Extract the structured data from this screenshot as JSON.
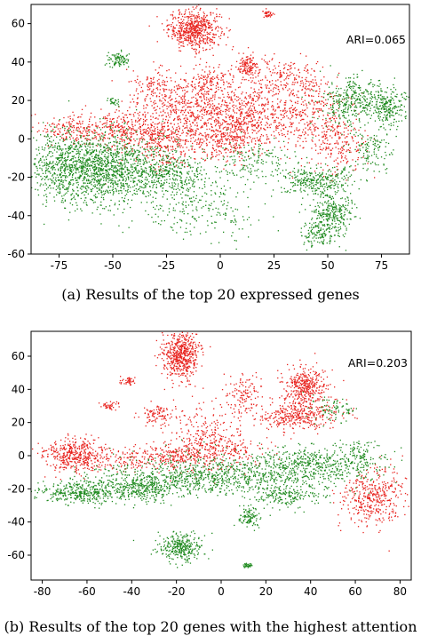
{
  "chart_data": [
    {
      "type": "scatter",
      "caption_label": "(a)",
      "caption_text": "Results of the top 20 expressed genes",
      "annotation": "ARI=0.065",
      "xlim": [
        -88,
        88
      ],
      "ylim": [
        -60,
        70
      ],
      "xticks": [
        -75,
        -50,
        -25,
        0,
        25,
        50,
        75
      ],
      "yticks": [
        -60,
        -40,
        -20,
        0,
        20,
        40,
        60
      ],
      "grid": false,
      "series": [
        {
          "color": "#e8231e",
          "clusters": [
            {
              "x": -12,
              "y": 57,
              "sx": 6,
              "sy": 5,
              "n": 600
            },
            {
              "x": 22,
              "y": 65,
              "sx": 1.2,
              "sy": 1,
              "n": 40
            },
            {
              "x": 13,
              "y": 38,
              "sx": 2.5,
              "sy": 3,
              "n": 120
            },
            {
              "x": -12,
              "y": 15,
              "sx": 10,
              "sy": 8,
              "n": 450
            },
            {
              "x": 15,
              "y": 12,
              "sx": 9,
              "sy": 8,
              "n": 450
            },
            {
              "x": -45,
              "y": 5,
              "sx": 10,
              "sy": 5,
              "n": 350
            },
            {
              "x": -25,
              "y": -2,
              "sx": 9,
              "sy": 7,
              "n": 300
            },
            {
              "x": 2,
              "y": 0,
              "sx": 8,
              "sy": 6,
              "n": 280
            },
            {
              "x": 40,
              "y": 15,
              "sx": 9,
              "sy": 10,
              "n": 350
            },
            {
              "x": 55,
              "y": -2,
              "sx": 6,
              "sy": 8,
              "n": 200
            },
            {
              "x": -70,
              "y": 5,
              "sx": 8,
              "sy": 4,
              "n": 150
            },
            {
              "x": -30,
              "y": 25,
              "sx": 6,
              "sy": 5,
              "n": 150
            },
            {
              "x": 28,
              "y": 33,
              "sx": 8,
              "sy": 5,
              "n": 150
            },
            {
              "x": -5,
              "y": 30,
              "sx": 6,
              "sy": 4,
              "n": 130
            }
          ]
        },
        {
          "color": "#1f8a1f",
          "clusters": [
            {
              "x": -55,
              "y": -15,
              "sx": 14,
              "sy": 9,
              "n": 1300
            },
            {
              "x": -75,
              "y": -15,
              "sx": 7,
              "sy": 9,
              "n": 350
            },
            {
              "x": -22,
              "y": -18,
              "sx": 10,
              "sy": 6,
              "n": 350
            },
            {
              "x": -10,
              "y": -38,
              "sx": 15,
              "sy": 7,
              "n": 200
            },
            {
              "x": 63,
              "y": 20,
              "sx": 8,
              "sy": 6,
              "n": 380
            },
            {
              "x": 78,
              "y": 16,
              "sx": 4,
              "sy": 5,
              "n": 180
            },
            {
              "x": 45,
              "y": -22,
              "sx": 8,
              "sy": 4,
              "n": 300
            },
            {
              "x": 52,
              "y": -40,
              "sx": 5,
              "sy": 6,
              "n": 300
            },
            {
              "x": 45,
              "y": -50,
              "sx": 4,
              "sy": 3,
              "n": 100
            },
            {
              "x": -47,
              "y": 41,
              "sx": 2.5,
              "sy": 2,
              "n": 90
            },
            {
              "x": -50,
              "y": 19,
              "sx": 1.5,
              "sy": 1.2,
              "n": 25
            },
            {
              "x": 15,
              "y": -12,
              "sx": 10,
              "sy": 6,
              "n": 150
            },
            {
              "x": 70,
              "y": -5,
              "sx": 5,
              "sy": 6,
              "n": 120
            }
          ]
        }
      ]
    },
    {
      "type": "scatter",
      "caption_label": "(b)",
      "caption_text": "Results of the top 20 genes with the highest attention",
      "annotation": "ARI=0.203",
      "xlim": [
        -85,
        85
      ],
      "ylim": [
        -75,
        75
      ],
      "xticks": [
        -80,
        -60,
        -40,
        -20,
        0,
        20,
        40,
        60,
        80
      ],
      "yticks": [
        -60,
        -40,
        -20,
        0,
        20,
        40,
        60
      ],
      "grid": false,
      "series": [
        {
          "color": "#e8231e",
          "clusters": [
            {
              "x": -18,
              "y": 60,
              "sx": 4,
              "sy": 7,
              "n": 550
            },
            {
              "x": -65,
              "y": 0,
              "sx": 8,
              "sy": 5,
              "n": 450
            },
            {
              "x": -20,
              "y": 0,
              "sx": 8,
              "sy": 4,
              "n": 220
            },
            {
              "x": 38,
              "y": 42,
              "sx": 5,
              "sy": 6,
              "n": 380
            },
            {
              "x": 35,
              "y": 24,
              "sx": 9,
              "sy": 4,
              "n": 350
            },
            {
              "x": 68,
              "y": -25,
              "sx": 7,
              "sy": 9,
              "n": 400
            },
            {
              "x": -42,
              "y": 45,
              "sx": 1.5,
              "sy": 1.3,
              "n": 40
            },
            {
              "x": -50,
              "y": 30,
              "sx": 1.8,
              "sy": 1.3,
              "n": 40
            },
            {
              "x": -28,
              "y": 25,
              "sx": 4,
              "sy": 3,
              "n": 100
            },
            {
              "x": -8,
              "y": 12,
              "sx": 8,
              "sy": 10,
              "n": 250
            },
            {
              "x": 10,
              "y": 35,
              "sx": 4,
              "sy": 7,
              "n": 120
            },
            {
              "x": 5,
              "y": 2,
              "sx": 8,
              "sy": 5,
              "n": 150
            },
            {
              "x": -40,
              "y": -2,
              "sx": 5,
              "sy": 4,
              "n": 100
            }
          ]
        },
        {
          "color": "#1f8a1f",
          "clusters": [
            {
              "x": 0,
              "y": -12,
              "sx": 28,
              "sy": 6,
              "n": 1000
            },
            {
              "x": -62,
              "y": -22,
              "sx": 9,
              "sy": 3.5,
              "n": 380
            },
            {
              "x": -35,
              "y": -20,
              "sx": 8,
              "sy": 4,
              "n": 300
            },
            {
              "x": 40,
              "y": -5,
              "sx": 12,
              "sy": 5,
              "n": 350
            },
            {
              "x": -18,
              "y": -55,
              "sx": 5,
              "sy": 4,
              "n": 300
            },
            {
              "x": 12,
              "y": -37,
              "sx": 2.2,
              "sy": 3,
              "n": 100
            },
            {
              "x": 12,
              "y": -66,
              "sx": 1.2,
              "sy": 0.8,
              "n": 35
            },
            {
              "x": 28,
              "y": -25,
              "sx": 8,
              "sy": 3,
              "n": 150
            },
            {
              "x": 62,
              "y": 0,
              "sx": 5,
              "sy": 5,
              "n": 120
            },
            {
              "x": 50,
              "y": 28,
              "sx": 5,
              "sy": 4,
              "n": 80
            }
          ]
        }
      ]
    }
  ]
}
